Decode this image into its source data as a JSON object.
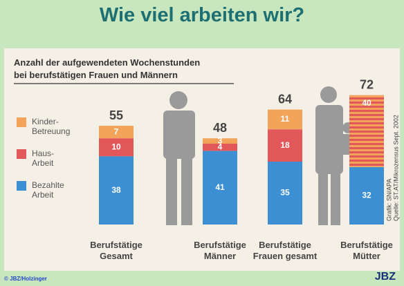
{
  "header": {
    "title": "Wie viel arbeiten wir?"
  },
  "chart_data": {
    "type": "bar",
    "stacked": true,
    "subtitle": [
      "Anzahl der aufgewendeten Wochenstunden",
      "bei berufstätigen Frauen und Männern"
    ],
    "categories": [
      "Berufstätige Gesamt",
      "Berufstätige Männer",
      "Berufstätige Frauen gesamt",
      "Berufstätige Mütter"
    ],
    "series": [
      {
        "name": "Bezahlte Arbeit",
        "color": "#3b8fd2",
        "values": [
          38,
          41,
          35,
          32
        ]
      },
      {
        "name": "Haus-Arbeit",
        "color": "#e2575a",
        "values": [
          10,
          4,
          18,
          null
        ]
      },
      {
        "name": "Kinder-Betreuung",
        "color": "#f2a55a",
        "values": [
          7,
          3,
          11,
          null
        ]
      },
      {
        "color": "#e2575a",
        "stripe_color": "#f2a55a",
        "striped": true,
        "values": [
          null,
          null,
          null,
          40
        ]
      }
    ],
    "totals": [
      55,
      48,
      64,
      72
    ],
    "source": [
      "Grafik: SN/APA",
      "Quelle: ST.AT/Mikrozensus Sept. 2002"
    ]
  },
  "footer": {
    "copyright": "© JBZ/Holzinger",
    "logo": "JBZ"
  }
}
